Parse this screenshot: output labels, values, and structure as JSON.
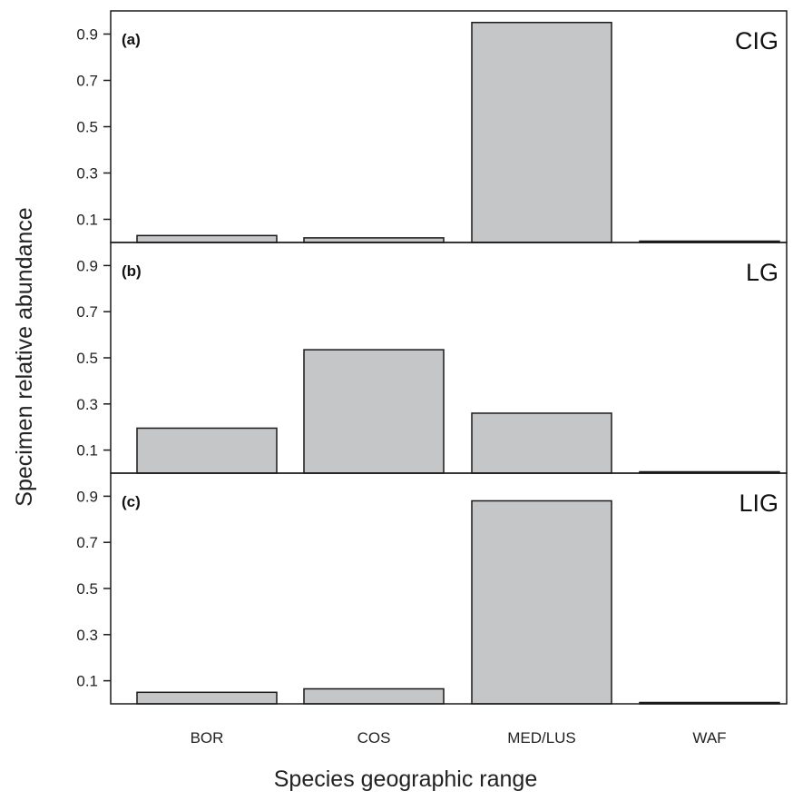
{
  "chart_data": {
    "type": "bar",
    "xlabel": "Species geographic range",
    "ylabel": "Specimen relative abundance",
    "categories": [
      "BOR",
      "COS",
      "MED/LUS",
      "WAF"
    ],
    "yticks": [
      "0.1",
      "0.3",
      "0.5",
      "0.7",
      "0.9"
    ],
    "ylim": [
      0,
      1
    ],
    "panels": [
      {
        "letter": "(a)",
        "name": "CIG",
        "values": [
          0.03,
          0.02,
          0.95,
          0.0
        ]
      },
      {
        "letter": "(b)",
        "name": "LG",
        "values": [
          0.195,
          0.535,
          0.26,
          0.005
        ]
      },
      {
        "letter": "(c)",
        "name": "LIG",
        "values": [
          0.05,
          0.065,
          0.88,
          0.0
        ]
      }
    ]
  }
}
